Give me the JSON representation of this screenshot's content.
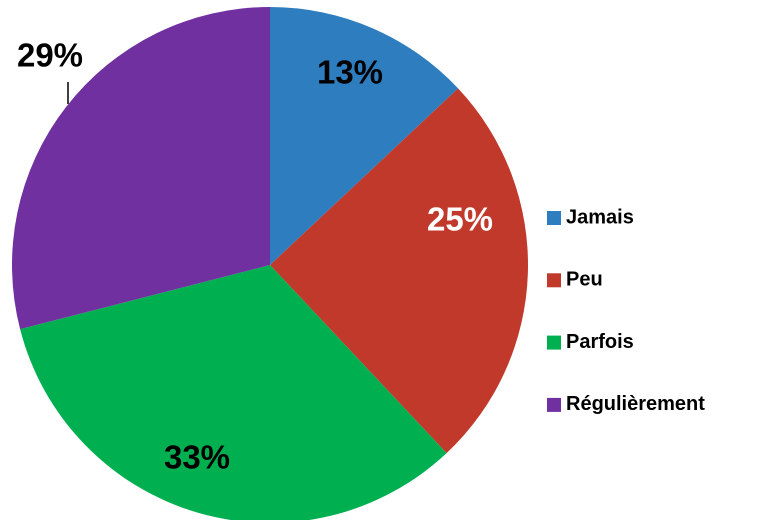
{
  "chart_data": {
    "type": "pie",
    "categories": [
      "Jamais",
      "Peu",
      "Parfois",
      "Régulièrement"
    ],
    "values": [
      13,
      25,
      33,
      29
    ],
    "value_labels": [
      "13%",
      "25%",
      "33%",
      "29%"
    ],
    "colors": [
      "#2e7ebf",
      "#c0392b",
      "#00b050",
      "#7030a0"
    ],
    "legend": "right"
  }
}
